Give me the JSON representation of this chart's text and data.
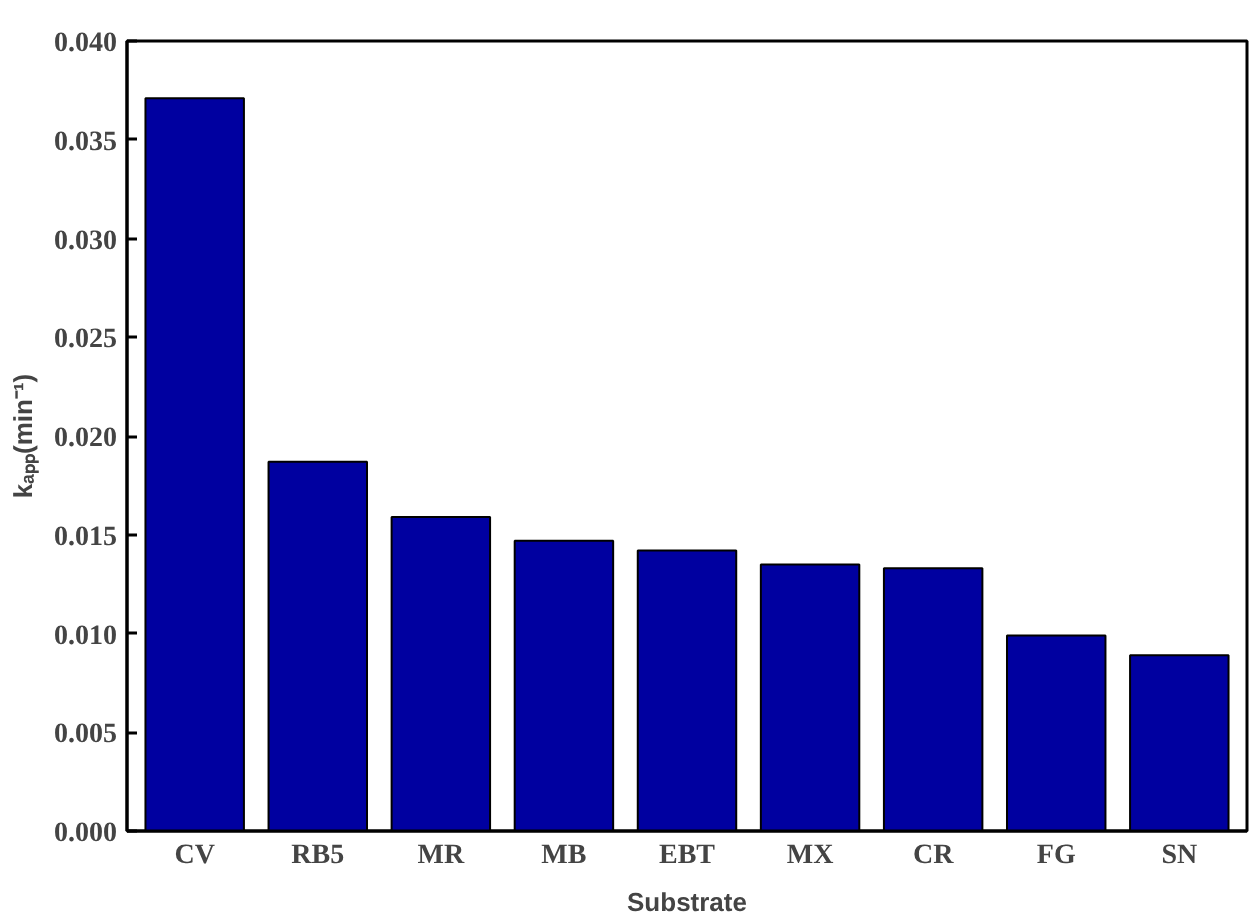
{
  "chart_data": {
    "type": "bar",
    "xlabel": "Substrate",
    "ylabel": "kₐₚₚ(min⁻¹)",
    "categories": [
      "CV",
      "RB5",
      "MR",
      "MB",
      "EBT",
      "MX",
      "CR",
      "FG",
      "SN"
    ],
    "values": [
      0.0371,
      0.0187,
      0.0159,
      0.0147,
      0.0142,
      0.0135,
      0.0133,
      0.0099,
      0.0089
    ],
    "color": "#0000a0",
    "ylim": [
      0,
      0.04
    ],
    "yticks": [
      {
        "value": 0,
        "label": "0.000"
      },
      {
        "value": 0.005,
        "label": "0.005"
      },
      {
        "value": 0.01,
        "label": "0.010"
      },
      {
        "value": 0.015,
        "label": "0.015"
      },
      {
        "value": 0.02,
        "label": "0.020"
      },
      {
        "value": 0.025,
        "label": "0.025"
      },
      {
        "value": 0.03,
        "label": "0.030"
      },
      {
        "value": 0.035,
        "label": "0.035"
      },
      {
        "value": 0.04,
        "label": "0.040"
      }
    ],
    "grid": false
  }
}
